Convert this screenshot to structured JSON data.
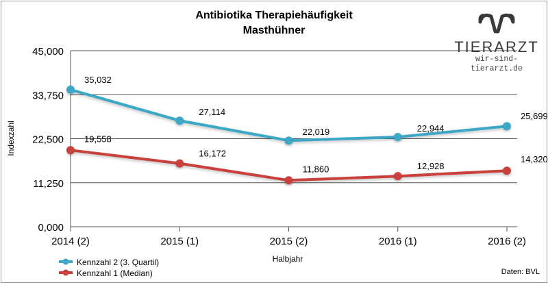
{
  "chart_data": {
    "type": "line",
    "title": "Antibiotika Therapiehäufigkeit",
    "subtitle": "Masthühner",
    "xlabel": "Halbjahr",
    "ylabel": "Indexzahl",
    "categories": [
      "2014 (2)",
      "2015 (1)",
      "2015 (2)",
      "2016 (1)",
      "2016 (2)"
    ],
    "ylim": [
      0,
      45000
    ],
    "yticks": [
      "0,000",
      "11,250",
      "22,500",
      "33,750",
      "45,000"
    ],
    "ytick_values": [
      0,
      11250,
      22500,
      33750,
      45000
    ],
    "grid": true,
    "legend_position": "bottom-left",
    "series": [
      {
        "name": "Kennzahl 2 (3. Quartil)",
        "color": "#3ea8c6",
        "values": [
          35032,
          27114,
          22019,
          22944,
          25699
        ],
        "labels": [
          "35,032",
          "27,114",
          "22,019",
          "22,944",
          "25,699"
        ]
      },
      {
        "name": "Kennzahl 1 (Median)",
        "color": "#c9403d",
        "values": [
          19558,
          16172,
          11860,
          12928,
          14320
        ],
        "labels": [
          "19,558",
          "16,172",
          "11,860",
          "12,928",
          "14,320"
        ]
      }
    ],
    "source": "Daten: BVL"
  },
  "logo": {
    "name": "TIERARZT",
    "url": "wir-sind-tierarzt.de",
    "icon": "antlers-logo-icon",
    "color": "#3a3a3a"
  }
}
